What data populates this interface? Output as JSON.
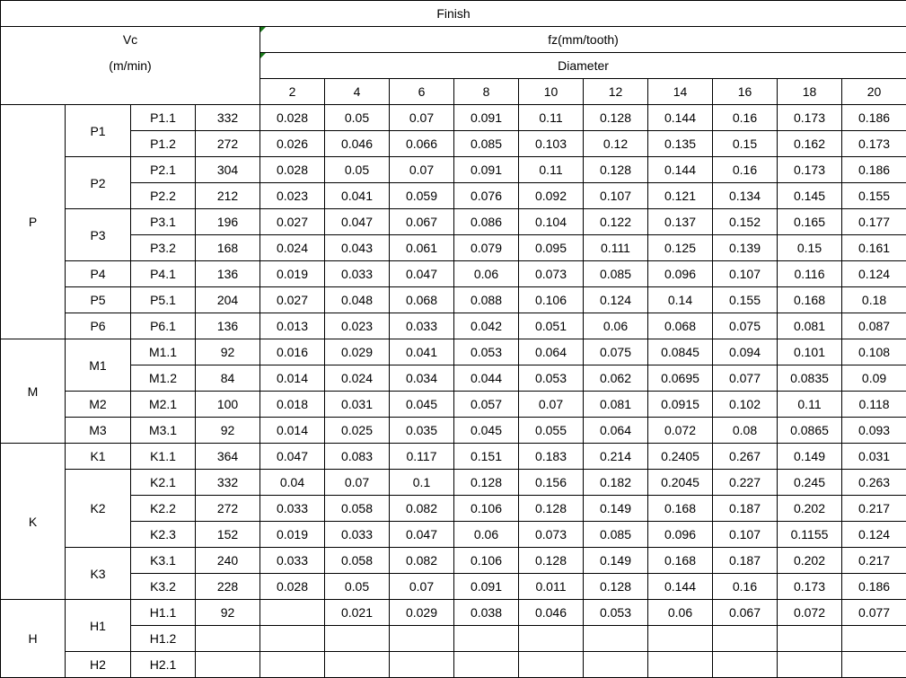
{
  "title": "Finish",
  "vc_label": "Vc",
  "vc_unit": "(m/min)",
  "fz_label": "fz(mm/tooth)",
  "diameter_label": "Diameter",
  "diameters": [
    "2",
    "4",
    "6",
    "8",
    "10",
    "12",
    "14",
    "16",
    "18",
    "20"
  ],
  "groups": [
    {
      "name": "P",
      "subgroups": [
        {
          "name": "P1",
          "rows": [
            {
              "id": "P1.1",
              "vc": "332",
              "fz": [
                "0.028",
                "0.05",
                "0.07",
                "0.091",
                "0.11",
                "0.128",
                "0.144",
                "0.16",
                "0.173",
                "0.186"
              ]
            },
            {
              "id": "P1.2",
              "vc": "272",
              "fz": [
                "0.026",
                "0.046",
                "0.066",
                "0.085",
                "0.103",
                "0.12",
                "0.135",
                "0.15",
                "0.162",
                "0.173"
              ]
            }
          ]
        },
        {
          "name": "P2",
          "rows": [
            {
              "id": "P2.1",
              "vc": "304",
              "fz": [
                "0.028",
                "0.05",
                "0.07",
                "0.091",
                "0.11",
                "0.128",
                "0.144",
                "0.16",
                "0.173",
                "0.186"
              ]
            },
            {
              "id": "P2.2",
              "vc": "212",
              "fz": [
                "0.023",
                "0.041",
                "0.059",
                "0.076",
                "0.092",
                "0.107",
                "0.121",
                "0.134",
                "0.145",
                "0.155"
              ]
            }
          ]
        },
        {
          "name": "P3",
          "rows": [
            {
              "id": "P3.1",
              "vc": "196",
              "fz": [
                "0.027",
                "0.047",
                "0.067",
                "0.086",
                "0.104",
                "0.122",
                "0.137",
                "0.152",
                "0.165",
                "0.177"
              ]
            },
            {
              "id": "P3.2",
              "vc": "168",
              "fz": [
                "0.024",
                "0.043",
                "0.061",
                "0.079",
                "0.095",
                "0.111",
                "0.125",
                "0.139",
                "0.15",
                "0.161"
              ]
            }
          ]
        },
        {
          "name": "P4",
          "rows": [
            {
              "id": "P4.1",
              "vc": "136",
              "fz": [
                "0.019",
                "0.033",
                "0.047",
                "0.06",
                "0.073",
                "0.085",
                "0.096",
                "0.107",
                "0.116",
                "0.124"
              ]
            }
          ]
        },
        {
          "name": "P5",
          "rows": [
            {
              "id": "P5.1",
              "vc": "204",
              "fz": [
                "0.027",
                "0.048",
                "0.068",
                "0.088",
                "0.106",
                "0.124",
                "0.14",
                "0.155",
                "0.168",
                "0.18"
              ]
            }
          ]
        },
        {
          "name": "P6",
          "rows": [
            {
              "id": "P6.1",
              "vc": "136",
              "fz": [
                "0.013",
                "0.023",
                "0.033",
                "0.042",
                "0.051",
                "0.06",
                "0.068",
                "0.075",
                "0.081",
                "0.087"
              ]
            }
          ]
        }
      ]
    },
    {
      "name": "M",
      "subgroups": [
        {
          "name": "M1",
          "rows": [
            {
              "id": "M1.1",
              "vc": "92",
              "fz": [
                "0.016",
                "0.029",
                "0.041",
                "0.053",
                "0.064",
                "0.075",
                "0.0845",
                "0.094",
                "0.101",
                "0.108"
              ]
            },
            {
              "id": "M1.2",
              "vc": "84",
              "fz": [
                "0.014",
                "0.024",
                "0.034",
                "0.044",
                "0.053",
                "0.062",
                "0.0695",
                "0.077",
                "0.0835",
                "0.09"
              ]
            }
          ]
        },
        {
          "name": "M2",
          "rows": [
            {
              "id": "M2.1",
              "vc": "100",
              "fz": [
                "0.018",
                "0.031",
                "0.045",
                "0.057",
                "0.07",
                "0.081",
                "0.0915",
                "0.102",
                "0.11",
                "0.118"
              ]
            }
          ]
        },
        {
          "name": "M3",
          "rows": [
            {
              "id": "M3.1",
              "vc": "92",
              "fz": [
                "0.014",
                "0.025",
                "0.035",
                "0.045",
                "0.055",
                "0.064",
                "0.072",
                "0.08",
                "0.0865",
                "0.093"
              ]
            }
          ]
        }
      ]
    },
    {
      "name": "K",
      "subgroups": [
        {
          "name": "K1",
          "rows": [
            {
              "id": "K1.1",
              "vc": "364",
              "fz": [
                "0.047",
                "0.083",
                "0.117",
                "0.151",
                "0.183",
                "0.214",
                "0.2405",
                "0.267",
                "0.149",
                "0.031"
              ]
            }
          ]
        },
        {
          "name": "K2",
          "rows": [
            {
              "id": "K2.1",
              "vc": "332",
              "fz": [
                "0.04",
                "0.07",
                "0.1",
                "0.128",
                "0.156",
                "0.182",
                "0.2045",
                "0.227",
                "0.245",
                "0.263"
              ]
            },
            {
              "id": "K2.2",
              "vc": "272",
              "fz": [
                "0.033",
                "0.058",
                "0.082",
                "0.106",
                "0.128",
                "0.149",
                "0.168",
                "0.187",
                "0.202",
                "0.217"
              ]
            },
            {
              "id": "K2.3",
              "vc": "152",
              "fz": [
                "0.019",
                "0.033",
                "0.047",
                "0.06",
                "0.073",
                "0.085",
                "0.096",
                "0.107",
                "0.1155",
                "0.124"
              ]
            }
          ]
        },
        {
          "name": "K3",
          "rows": [
            {
              "id": "K3.1",
              "vc": "240",
              "fz": [
                "0.033",
                "0.058",
                "0.082",
                "0.106",
                "0.128",
                "0.149",
                "0.168",
                "0.187",
                "0.202",
                "0.217"
              ]
            },
            {
              "id": "K3.2",
              "vc": "228",
              "fz": [
                "0.028",
                "0.05",
                "0.07",
                "0.091",
                "0.011",
                "0.128",
                "0.144",
                "0.16",
                "0.173",
                "0.186"
              ]
            }
          ]
        }
      ]
    },
    {
      "name": "H",
      "subgroups": [
        {
          "name": "H1",
          "rows": [
            {
              "id": "H1.1",
              "vc": "92",
              "fz": [
                "",
                "0.021",
                "0.029",
                "0.038",
                "0.046",
                "0.053",
                "0.06",
                "0.067",
                "0.072",
                "0.077"
              ]
            },
            {
              "id": "H1.2",
              "vc": "",
              "fz": [
                "",
                "",
                "",
                "",
                "",
                "",
                "",
                "",
                "",
                ""
              ]
            }
          ]
        },
        {
          "name": "H2",
          "rows": [
            {
              "id": "H2.1",
              "vc": "",
              "fz": [
                "",
                "",
                "",
                "",
                "",
                "",
                "",
                "",
                "",
                ""
              ]
            }
          ]
        }
      ]
    }
  ]
}
